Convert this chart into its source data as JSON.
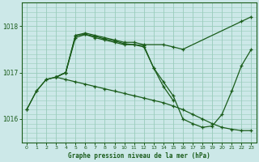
{
  "title": "Graphe pression niveau de la mer (hPa)",
  "background_color": "#cce8e8",
  "grid_color": "#99ccbb",
  "line_color": "#1a5c1a",
  "xlim": [
    -0.5,
    23.5
  ],
  "ylim": [
    1015.5,
    1018.5
  ],
  "yticks": [
    1016,
    1017,
    1018
  ],
  "xticks": [
    0,
    1,
    2,
    3,
    4,
    5,
    6,
    7,
    8,
    9,
    10,
    11,
    12,
    13,
    14,
    15,
    16,
    17,
    18,
    19,
    20,
    21,
    22,
    23
  ],
  "series": [
    {
      "x": [
        0,
        1,
        2,
        3,
        4,
        5,
        6,
        7,
        8,
        9,
        10,
        11,
        12,
        14,
        15,
        16,
        22,
        23
      ],
      "y": [
        1016.2,
        1016.6,
        1016.85,
        1016.9,
        1017.0,
        1017.8,
        1017.85,
        1017.8,
        1017.75,
        1017.7,
        1017.65,
        1017.65,
        1017.6,
        1017.6,
        1017.55,
        1017.5,
        1018.1,
        1018.2
      ]
    },
    {
      "x": [
        0,
        1,
        2,
        3,
        4,
        5,
        6,
        7,
        8,
        9,
        10,
        11,
        12,
        13,
        14,
        15,
        16,
        17,
        18,
        19,
        20,
        21,
        22,
        23
      ],
      "y": [
        1016.2,
        1016.6,
        1016.85,
        1016.9,
        1017.0,
        1017.75,
        1017.82,
        1017.75,
        1017.7,
        1017.65,
        1017.6,
        1017.6,
        1017.58,
        1017.1,
        1016.8,
        1016.5,
        1016.0,
        1015.9,
        1015.82,
        1015.85,
        1016.1,
        1016.6,
        1017.15,
        1017.5
      ]
    },
    {
      "x": [
        3,
        4,
        5,
        6,
        7,
        8,
        9,
        10,
        11,
        12,
        13,
        14,
        15,
        16,
        17,
        18,
        19,
        20,
        21,
        22,
        23
      ],
      "y": [
        1016.9,
        1016.85,
        1016.8,
        1016.75,
        1016.7,
        1016.65,
        1016.6,
        1016.55,
        1016.5,
        1016.45,
        1016.4,
        1016.35,
        1016.28,
        1016.2,
        1016.1,
        1016.0,
        1015.9,
        1015.82,
        1015.78,
        1015.75,
        1015.75
      ]
    },
    {
      "x": [
        3,
        4,
        5,
        6,
        7,
        8,
        9,
        10,
        11,
        12,
        13,
        14,
        15
      ],
      "y": [
        1016.9,
        1017.0,
        1017.8,
        1017.82,
        1017.78,
        1017.72,
        1017.68,
        1017.62,
        1017.6,
        1017.55,
        1017.1,
        1016.7,
        1016.4
      ]
    }
  ]
}
